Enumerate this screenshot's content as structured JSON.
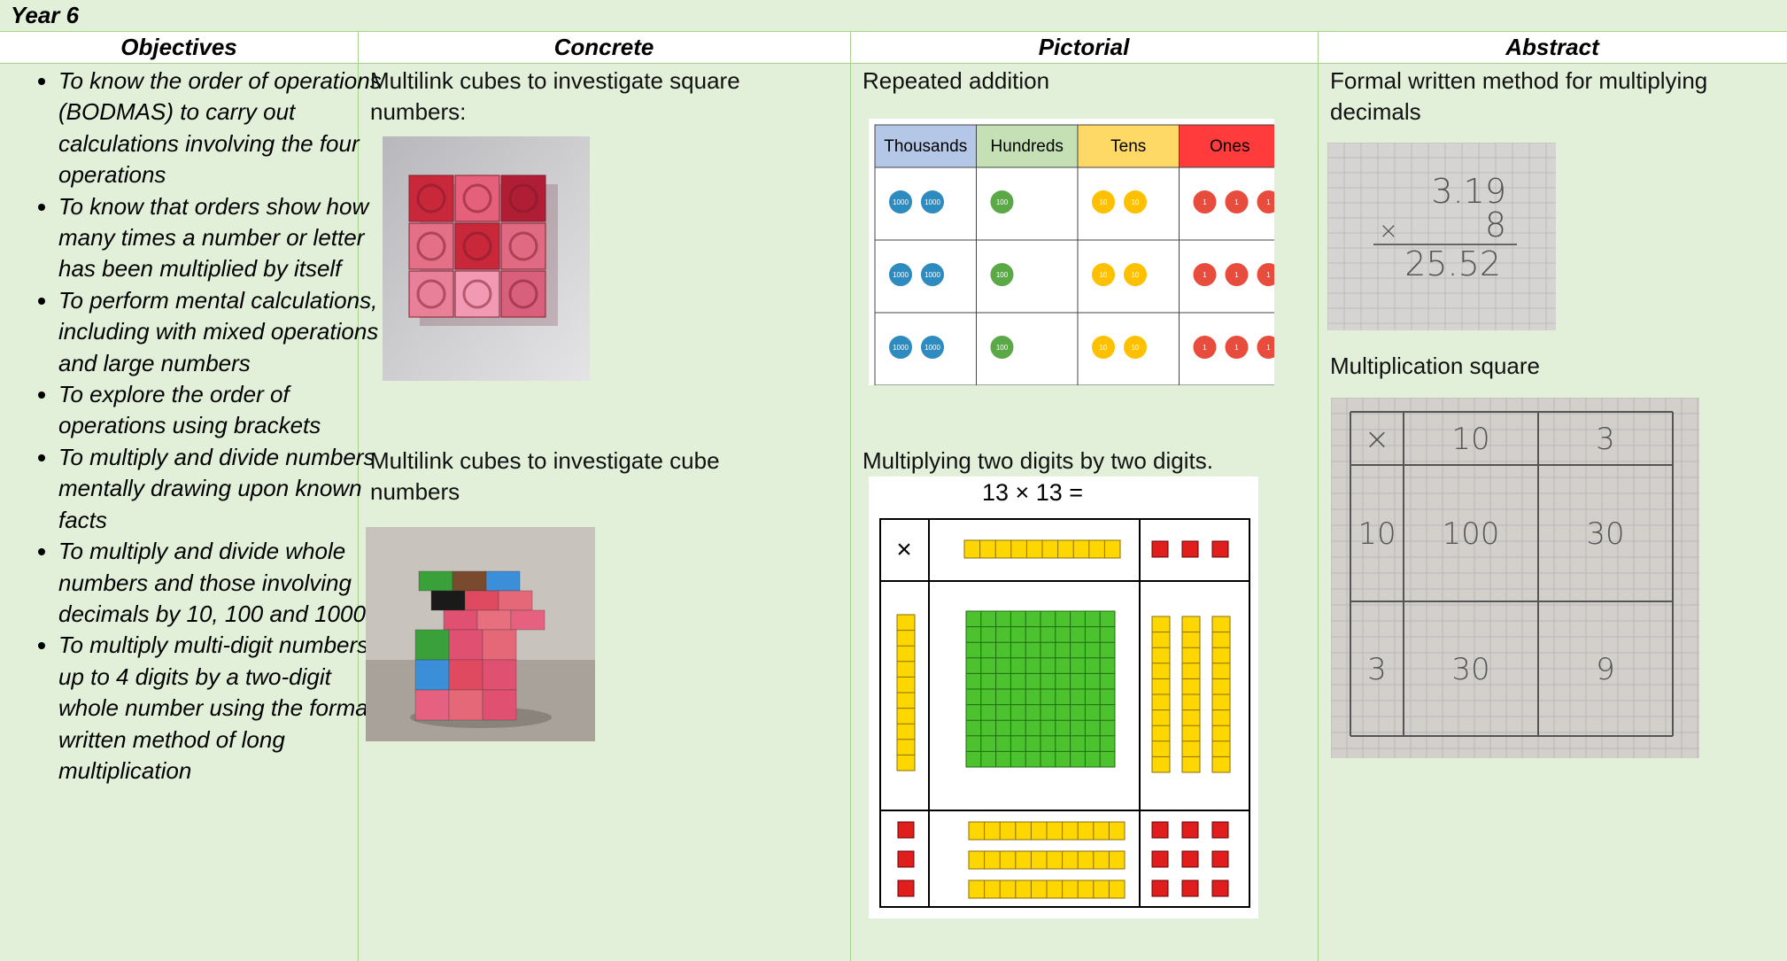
{
  "title": "Year 6",
  "headers": [
    "Objectives",
    "Concrete",
    "Pictorial",
    "Abstract"
  ],
  "objectives": [
    "To know the order of operations (BODMAS) to carry out calculations involving the four operations",
    "To know that orders show how many times a number or letter has been multiplied by itself",
    "To perform mental calculations, including with mixed operations and large numbers",
    "To explore the order of operations using brackets",
    "To multiply and divide numbers mentally drawing upon known facts",
    "To multiply and divide whole numbers and those involving decimals by 10, 100 and 1000",
    "To multiply multi-digit numbers up to 4 digits by a two-digit whole number using the formal written method of long multiplication"
  ],
  "concrete": {
    "captions": [
      "Multilink cubes to investigate square numbers:",
      "Multilink cubes to investigate cube numbers"
    ]
  },
  "pictorial": {
    "captions": [
      "Repeated addition",
      "Multiplying two digits by two digits."
    ],
    "place_value_table": {
      "headers": [
        "Thousands",
        "Hundreds",
        "Tens",
        "Ones"
      ],
      "counters": [
        "1000",
        "100",
        "10",
        "1"
      ]
    },
    "area_model": {
      "expression": "13 × 13 =",
      "corner": "×"
    }
  },
  "abstract": {
    "captions": [
      "Formal written method for multiplying decimals",
      "Multiplication square"
    ],
    "written_method": {
      "lines": [
        "3.19",
        "8",
        "25.52"
      ],
      "operator": "×"
    },
    "multiplication_square": {
      "cells": [
        [
          "×",
          "10",
          "3"
        ],
        [
          "10",
          "100",
          "30"
        ],
        [
          "3",
          "30",
          "9"
        ]
      ]
    }
  }
}
